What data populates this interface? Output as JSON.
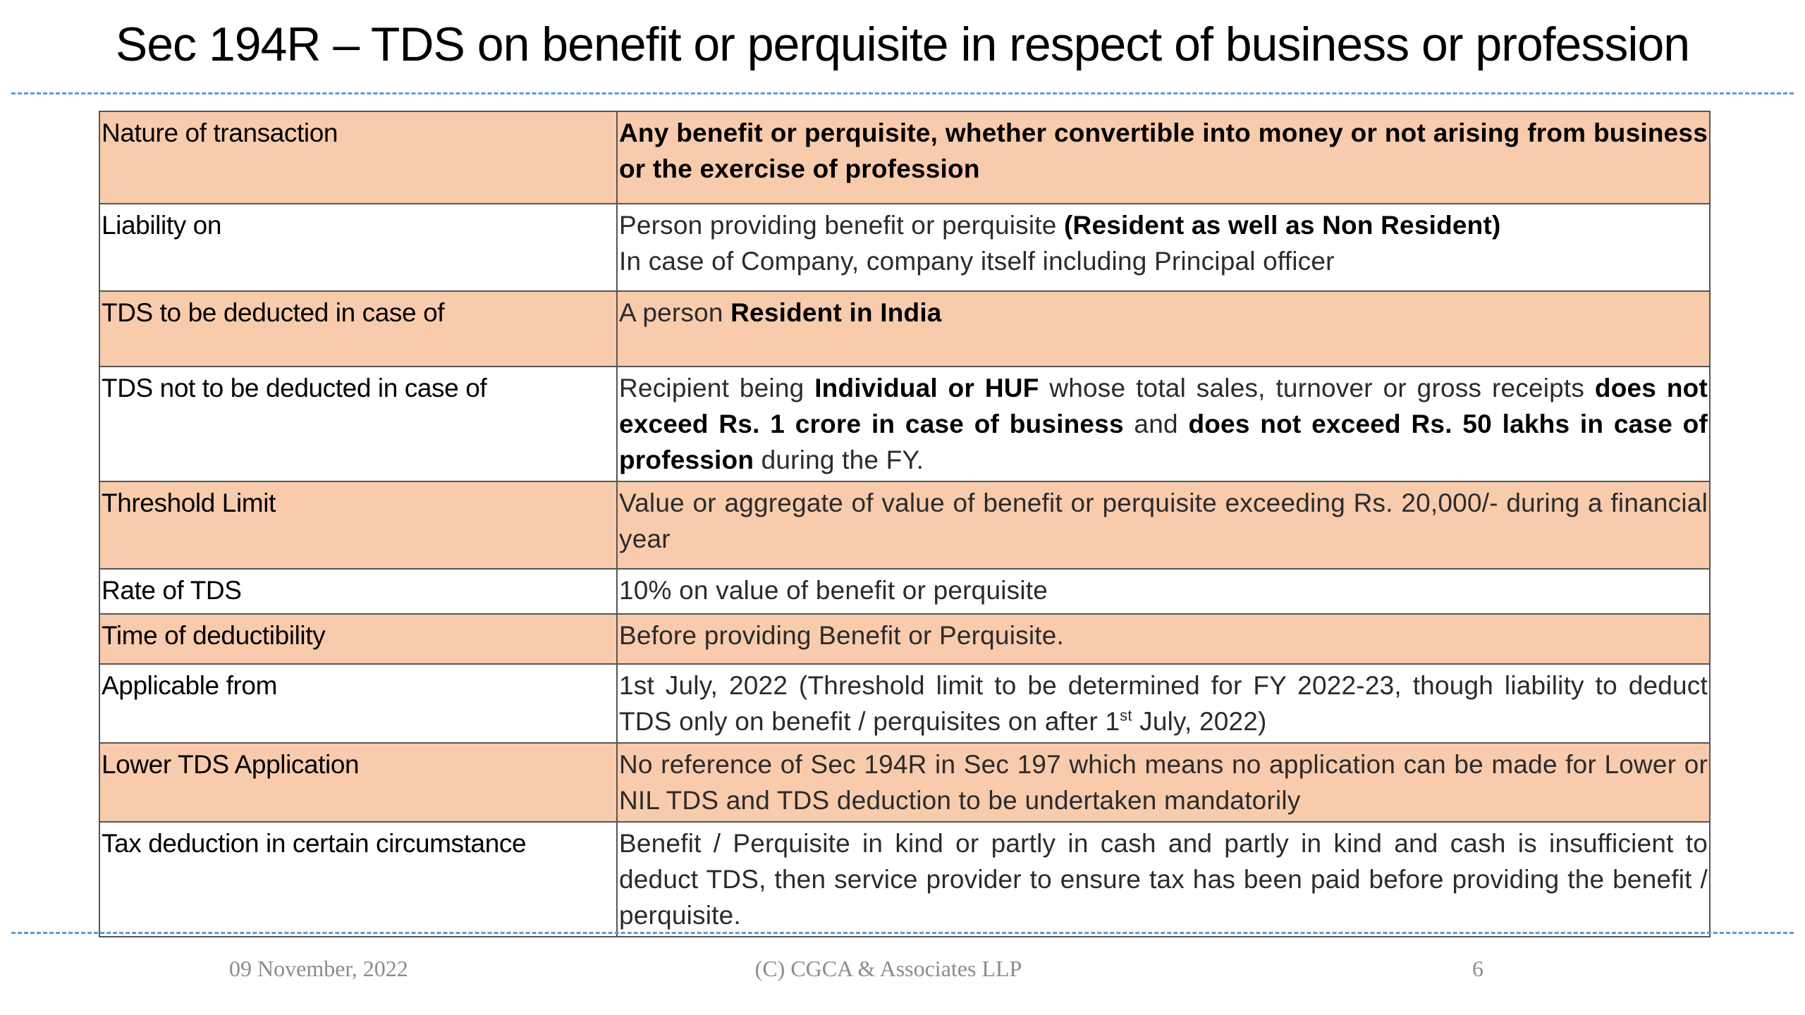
{
  "title": "Sec 194R – TDS on benefit or perquisite in respect of business or profession",
  "colors": {
    "row_shade": "#f8cbad",
    "rule": "#5b9bd5",
    "footer_text": "#8c8c8c"
  },
  "rows": [
    {
      "label": "Nature of transaction",
      "value": [
        "Any benefit or perquisite, whether convertible into money or not arising from business or the exercise of profession"
      ]
    },
    {
      "label": "Liability on",
      "value_a": "Person providing benefit or perquisite ",
      "value_b": "(Resident as well as Non Resident)",
      "value_c": "In case of Company, company itself including Principal officer"
    },
    {
      "label": "TDS to be deducted in case of",
      "value_a": "A person ",
      "value_b": "Resident in India"
    },
    {
      "label": "TDS not to be deducted in case of",
      "value_a": "Recipient being ",
      "value_b": "Individual or HUF",
      "value_c": " whose total sales, turnover or gross receipts ",
      "value_d": "does not exceed Rs. 1 crore in case of business",
      "value_e": " and ",
      "value_f": "does not exceed Rs. 50 lakhs in case of profession",
      "value_g": " during the FY."
    },
    {
      "label": "Threshold Limit",
      "value": "Value or aggregate of value of benefit or perquisite exceeding Rs. 20,000/- during a financial year"
    },
    {
      "label": "Rate of TDS",
      "value": "10% on value of benefit or perquisite"
    },
    {
      "label": "Time of deductibility",
      "value": "Before providing Benefit or Perquisite."
    },
    {
      "label": "Applicable from",
      "value_a": "1st July, 2022 (Threshold limit to be determined for FY 2022-23, though liability to deduct TDS only on benefit / perquisites on after 1",
      "value_sup": "st",
      "value_b": " July, 2022)"
    },
    {
      "label": "Lower TDS Application",
      "value": "No reference of Sec 194R in Sec 197 which means no application can be made for Lower or NIL TDS and TDS deduction to be undertaken mandatorily"
    },
    {
      "label": "Tax deduction in certain circumstance",
      "value": "Benefit / Perquisite in kind or partly in cash and partly in kind and cash is insufficient to deduct TDS, then service provider to ensure tax has been paid before providing the benefit / perquisite."
    }
  ],
  "footer": {
    "date": "09 November, 2022",
    "copyright": "(C) CGCA & Associates LLP",
    "page_number": "6"
  }
}
